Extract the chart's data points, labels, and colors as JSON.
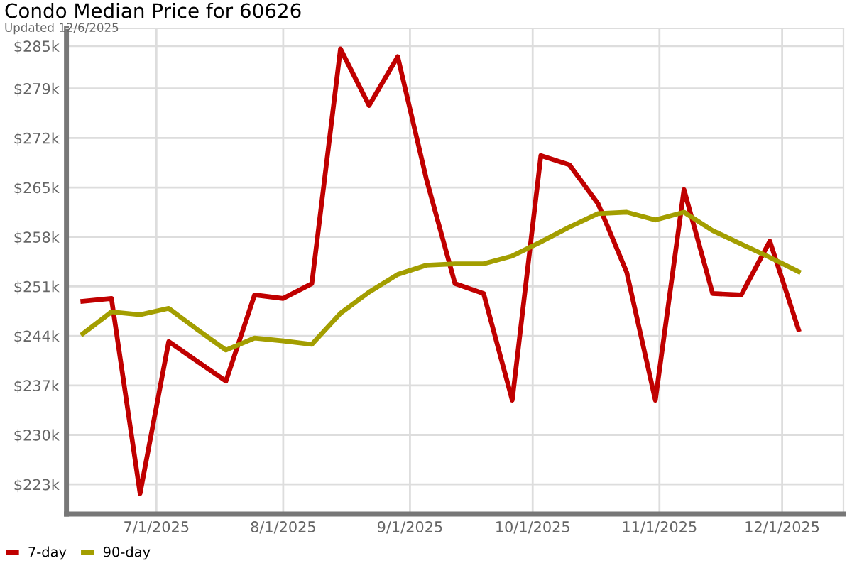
{
  "chart_data": {
    "type": "line",
    "title": "Condo Median Price for 60626",
    "subtitle": "Updated 12/6/2025",
    "x": [
      "2025-06-13",
      "2025-06-20",
      "2025-06-27",
      "2025-07-04",
      "2025-07-11",
      "2025-07-18",
      "2025-07-25",
      "2025-08-01",
      "2025-08-08",
      "2025-08-15",
      "2025-08-22",
      "2025-08-29",
      "2025-09-05",
      "2025-09-12",
      "2025-09-19",
      "2025-09-26",
      "2025-10-03",
      "2025-10-10",
      "2025-10-17",
      "2025-10-24",
      "2025-10-31",
      "2025-11-07",
      "2025-11-14",
      "2025-11-21",
      "2025-11-28",
      "2025-12-05"
    ],
    "series": [
      {
        "name": "7-day",
        "color": "#c00000",
        "values": [
          248.9,
          249.3,
          221.7,
          243.2,
          240.4,
          237.6,
          249.8,
          249.3,
          251.4,
          284.6,
          276.6,
          283.5,
          266.2,
          251.4,
          250.0,
          234.9,
          269.5,
          268.2,
          262.7,
          253.0,
          234.9,
          264.7,
          250.0,
          249.8,
          257.4,
          244.9
        ]
      },
      {
        "name": "90-day",
        "color": "#a39e00",
        "values": [
          244.3,
          247.4,
          247.0,
          247.9,
          244.9,
          242.0,
          243.7,
          243.3,
          242.8,
          247.2,
          250.2,
          252.7,
          254.0,
          254.2,
          254.2,
          255.3,
          257.3,
          259.4,
          261.3,
          261.5,
          260.4,
          261.5,
          258.9,
          257.0,
          255.1,
          253.1
        ]
      }
    ],
    "xlim": [
      "2025-06-09",
      "2025-12-16"
    ],
    "xticks": [
      {
        "value": "2025-07-01",
        "label": "7/1/2025"
      },
      {
        "value": "2025-08-01",
        "label": "8/1/2025"
      },
      {
        "value": "2025-09-01",
        "label": "9/1/2025"
      },
      {
        "value": "2025-10-01",
        "label": "10/1/2025"
      },
      {
        "value": "2025-11-01",
        "label": "11/1/2025"
      },
      {
        "value": "2025-12-01",
        "label": "12/1/2025"
      }
    ],
    "ylim": [
      218.8,
      287.5
    ],
    "yticks": [
      {
        "value": 223,
        "label": "$223k"
      },
      {
        "value": 230,
        "label": "$230k"
      },
      {
        "value": 237,
        "label": "$237k"
      },
      {
        "value": 244,
        "label": "$244k"
      },
      {
        "value": 251,
        "label": "$251k"
      },
      {
        "value": 258,
        "label": "$258k"
      },
      {
        "value": 265,
        "label": "$265k"
      },
      {
        "value": 272,
        "label": "$272k"
      },
      {
        "value": 279,
        "label": "$279k"
      },
      {
        "value": 285,
        "label": "$285k"
      }
    ],
    "grid": true,
    "legend": "bottom left",
    "marker": "none",
    "line_style": "solid"
  }
}
